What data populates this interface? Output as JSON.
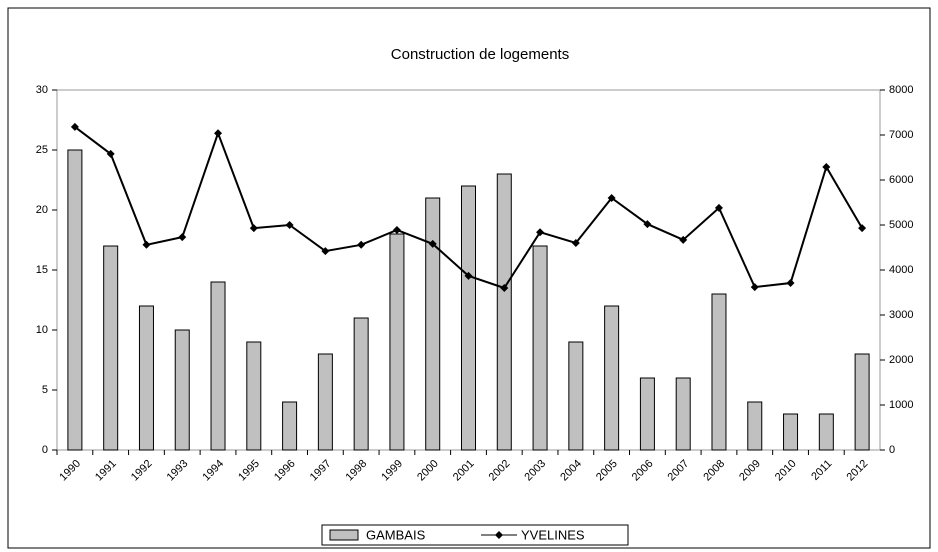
{
  "chart_data": {
    "type": "bar+line",
    "title": "Construction de logements",
    "categories": [
      "1990",
      "1991",
      "1992",
      "1993",
      "1994",
      "1995",
      "1996",
      "1997",
      "1998",
      "1999",
      "2000",
      "2001",
      "2002",
      "2003",
      "2004",
      "2005",
      "2006",
      "2007",
      "2008",
      "2009",
      "2010",
      "2011",
      "2012"
    ],
    "series": [
      {
        "name": "GAMBAIS",
        "type": "bar",
        "color": "#c0c0c0",
        "axis": "y",
        "values": [
          25,
          17,
          12,
          10,
          14,
          9,
          4,
          8,
          11,
          18,
          21,
          22,
          23,
          17,
          9,
          12,
          6,
          6,
          13,
          4,
          3,
          3,
          8
        ]
      },
      {
        "name": "YVELINES",
        "type": "line",
        "color": "#000000",
        "axis": "y2",
        "values": [
          7180,
          6580,
          4560,
          4730,
          7040,
          4930,
          5000,
          4420,
          4560,
          4890,
          4580,
          3870,
          3600,
          4840,
          4600,
          5600,
          5020,
          4670,
          5380,
          3620,
          3710,
          6290,
          4930
        ]
      }
    ],
    "ylim": [
      0,
      30
    ],
    "yticks": [
      0,
      5,
      10,
      15,
      20,
      25,
      30
    ],
    "y2lim": [
      0,
      8000
    ],
    "y2ticks": [
      0,
      1000,
      2000,
      3000,
      4000,
      5000,
      6000,
      7000,
      8000
    ],
    "grid": false,
    "legend": "bottom"
  }
}
